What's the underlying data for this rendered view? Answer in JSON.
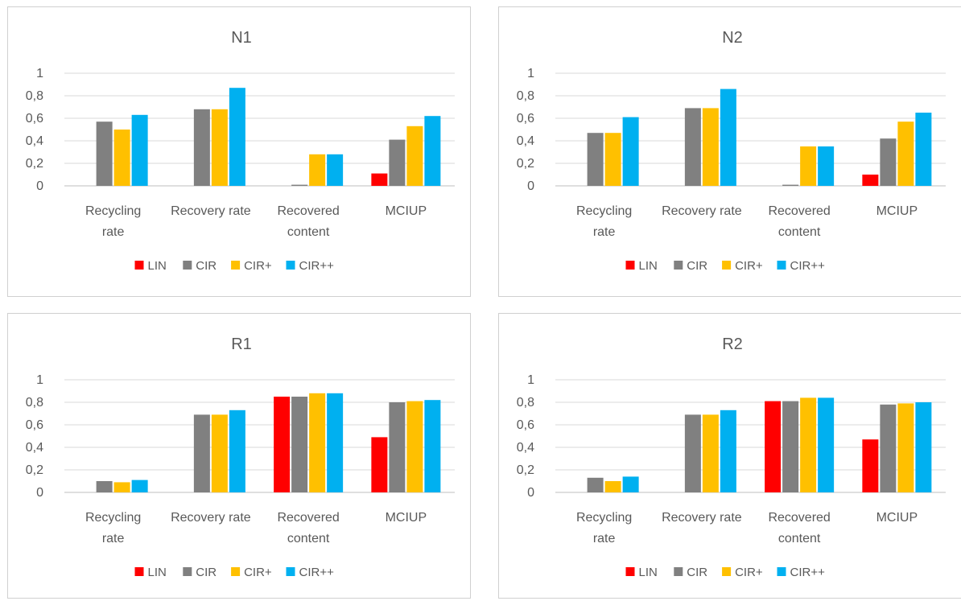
{
  "colors": {
    "LIN": "#ff0000",
    "CIR": "#808080",
    "CIR+": "#ffc000",
    "CIR++": "#00b0f0"
  },
  "chart_data": [
    {
      "type": "bar",
      "title": "N1",
      "categories": [
        [
          "Recycling",
          "rate"
        ],
        [
          "Recovery rate"
        ],
        [
          "Recovered",
          "content"
        ],
        [
          "MCIUP"
        ]
      ],
      "yticks": [
        "0",
        "0,2",
        "0,4",
        "0,6",
        "0,8",
        "1"
      ],
      "ylim": [
        0,
        1
      ],
      "grid": true,
      "legend": "bottom",
      "series": [
        {
          "name": "LIN",
          "values": [
            0,
            0,
            0,
            0.11
          ]
        },
        {
          "name": "CIR",
          "values": [
            0.57,
            0.68,
            0.01,
            0.41
          ]
        },
        {
          "name": "CIR+",
          "values": [
            0.5,
            0.68,
            0.28,
            0.53
          ]
        },
        {
          "name": "CIR++",
          "values": [
            0.63,
            0.87,
            0.28,
            0.62
          ]
        }
      ]
    },
    {
      "type": "bar",
      "title": "N2",
      "categories": [
        [
          "Recycling",
          "rate"
        ],
        [
          "Recovery rate"
        ],
        [
          "Recovered",
          "content"
        ],
        [
          "MCIUP"
        ]
      ],
      "yticks": [
        "0",
        "0,2",
        "0,4",
        "0,6",
        "0,8",
        "1"
      ],
      "ylim": [
        0,
        1
      ],
      "grid": true,
      "legend": "bottom",
      "series": [
        {
          "name": "LIN",
          "values": [
            0,
            0,
            0,
            0.1
          ]
        },
        {
          "name": "CIR",
          "values": [
            0.47,
            0.69,
            0.01,
            0.42
          ]
        },
        {
          "name": "CIR+",
          "values": [
            0.47,
            0.69,
            0.35,
            0.57
          ]
        },
        {
          "name": "CIR++",
          "values": [
            0.61,
            0.86,
            0.35,
            0.65
          ]
        }
      ]
    },
    {
      "type": "bar",
      "title": "R1",
      "categories": [
        [
          "Recycling",
          "rate"
        ],
        [
          "Recovery rate"
        ],
        [
          "Recovered",
          "content"
        ],
        [
          "MCIUP"
        ]
      ],
      "yticks": [
        "0",
        "0,2",
        "0,4",
        "0,6",
        "0,8",
        "1"
      ],
      "ylim": [
        0,
        1
      ],
      "grid": true,
      "legend": "bottom",
      "series": [
        {
          "name": "LIN",
          "values": [
            0,
            0,
            0.85,
            0.49
          ]
        },
        {
          "name": "CIR",
          "values": [
            0.1,
            0.69,
            0.85,
            0.8
          ]
        },
        {
          "name": "CIR+",
          "values": [
            0.09,
            0.69,
            0.88,
            0.81
          ]
        },
        {
          "name": "CIR++",
          "values": [
            0.11,
            0.73,
            0.88,
            0.82
          ]
        }
      ]
    },
    {
      "type": "bar",
      "title": "R2",
      "categories": [
        [
          "Recycling",
          "rate"
        ],
        [
          "Recovery rate"
        ],
        [
          "Recovered",
          "content"
        ],
        [
          "MCIUP"
        ]
      ],
      "yticks": [
        "0",
        "0,2",
        "0,4",
        "0,6",
        "0,8",
        "1"
      ],
      "ylim": [
        0,
        1
      ],
      "grid": true,
      "legend": "bottom",
      "series": [
        {
          "name": "LIN",
          "values": [
            0,
            0,
            0.81,
            0.47
          ]
        },
        {
          "name": "CIR",
          "values": [
            0.13,
            0.69,
            0.81,
            0.78
          ]
        },
        {
          "name": "CIR+",
          "values": [
            0.1,
            0.69,
            0.84,
            0.79
          ]
        },
        {
          "name": "CIR++",
          "values": [
            0.14,
            0.73,
            0.84,
            0.8
          ]
        }
      ]
    }
  ]
}
